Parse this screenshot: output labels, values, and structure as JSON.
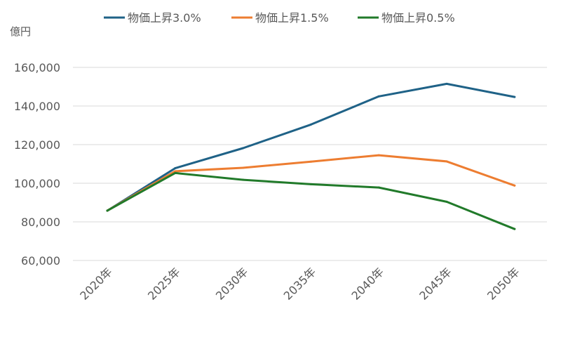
{
  "chart_data": {
    "type": "line",
    "ylabel": "億円",
    "categories": [
      "2020年",
      "2025年",
      "2030年",
      "2035年",
      "2040年",
      "2045年",
      "2050年"
    ],
    "ylim": [
      60000,
      160000
    ],
    "yticks": [
      60000,
      80000,
      100000,
      120000,
      140000,
      160000
    ],
    "grid": true,
    "legend_position": "top",
    "series": [
      {
        "name": "物価上昇3.0%",
        "color": "#1f6287",
        "values": [
          85800,
          107800,
          118200,
          130400,
          145000,
          151500,
          144700
        ]
      },
      {
        "name": "物価上昇1.5%",
        "color": "#ed7d31",
        "values": [
          85800,
          106200,
          108000,
          111200,
          114500,
          111300,
          98800
        ]
      },
      {
        "name": "物価上昇0.5%",
        "color": "#217a2a",
        "values": [
          85800,
          105300,
          101800,
          99500,
          97800,
          90400,
          76300
        ]
      }
    ]
  }
}
